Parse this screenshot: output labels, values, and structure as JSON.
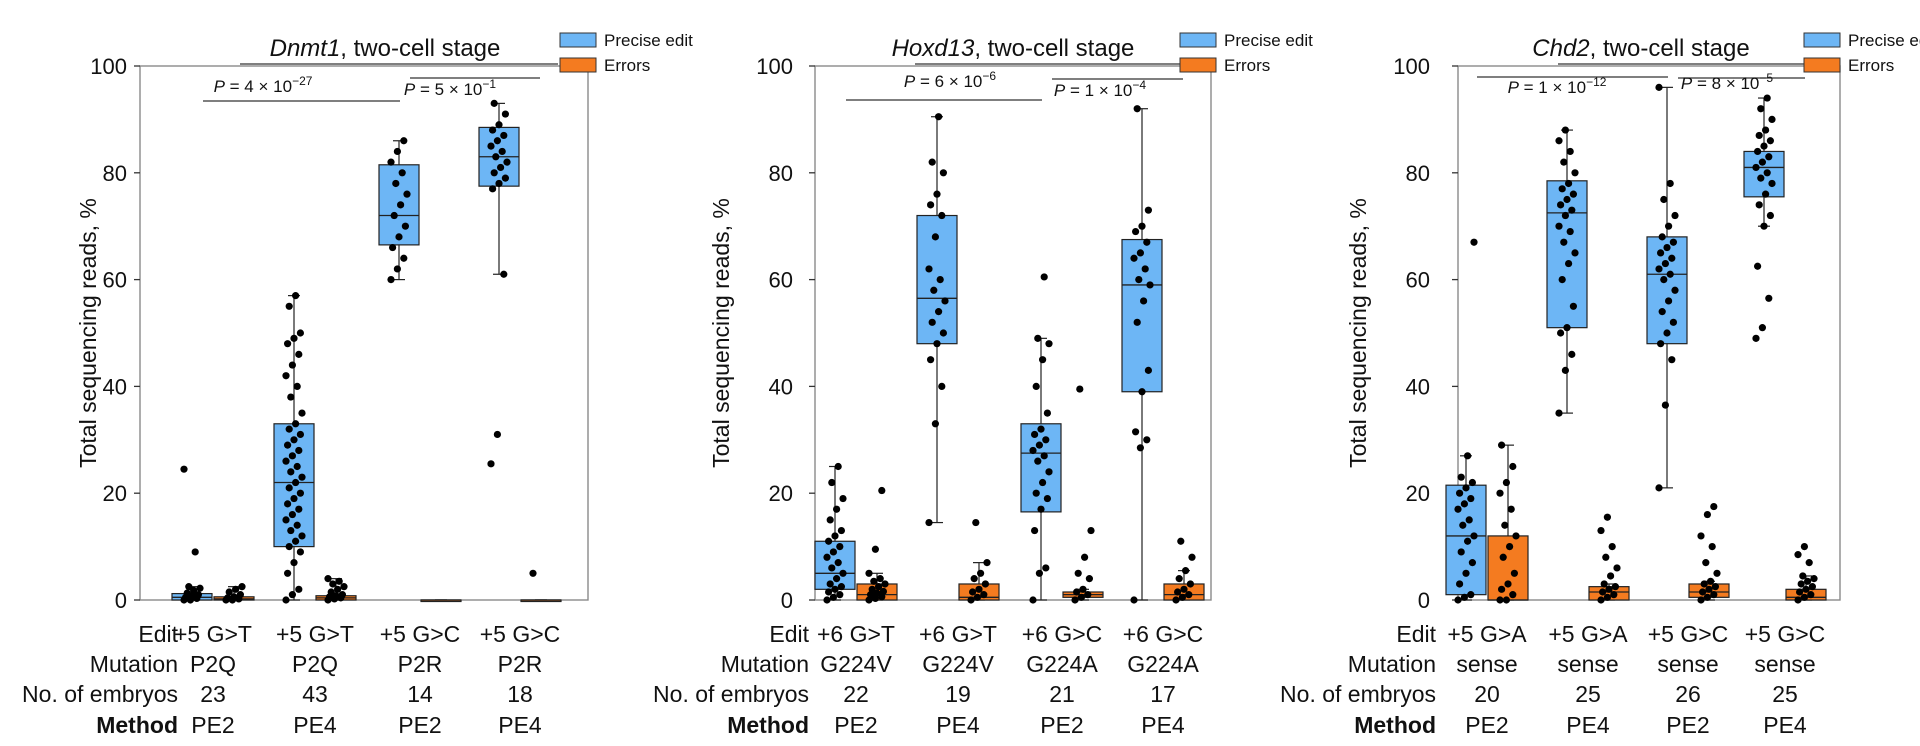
{
  "colors": {
    "precise": "#6DB6F5",
    "errors": "#F47B20",
    "frame": "#8a8a8a",
    "point": "#000000"
  },
  "table_row_labels": [
    "Edit",
    "Mutation",
    "No. of embryos",
    "Method"
  ],
  "chart_data": [
    {
      "type": "box",
      "title_italic": "Dnmt1",
      "title_rest": ", two-cell stage",
      "ylabel": "Total sequencing reads, %",
      "ylim": [
        0,
        100
      ],
      "yticks": [
        0,
        20,
        40,
        60,
        80,
        100
      ],
      "legend": [
        "Precise edit",
        "Errors"
      ],
      "groups": [
        {
          "edit": "+5 G>T",
          "mutation": "P2Q",
          "n": "23",
          "method": "PE2",
          "precise": {
            "q1": 0,
            "median": 0.5,
            "q3": 1.2,
            "min": 0,
            "max": 2.5,
            "points": [
              0,
              0,
              0.3,
              0.5,
              0.8,
              1,
              1.3,
              1.8,
              2.2,
              2.5,
              9,
              24.5
            ]
          },
          "errors": {
            "q1": 0,
            "median": 0.2,
            "q3": 0.6,
            "min": 0,
            "max": 2.5,
            "points": [
              0,
              0,
              0.2,
              0.4,
              0.6,
              1,
              1.5,
              2,
              2.5
            ]
          }
        },
        {
          "edit": "+5 G>T",
          "mutation": "P2Q",
          "n": "43",
          "method": "PE4",
          "precise": {
            "q1": 10,
            "median": 22,
            "q3": 33,
            "min": 0,
            "max": 57,
            "points": [
              0,
              1,
              2,
              5,
              7,
              9,
              10,
              11,
              12,
              13,
              14,
              15,
              16,
              17,
              18,
              19,
              20,
              21,
              22,
              23,
              24,
              25,
              26,
              27,
              28,
              29,
              30,
              31,
              32,
              33,
              35,
              38,
              40,
              42,
              44,
              46,
              48,
              49,
              50,
              55,
              57
            ]
          },
          "errors": {
            "q1": 0,
            "median": 0.4,
            "q3": 0.8,
            "min": 0,
            "max": 4,
            "points": [
              0,
              0.2,
              0.4,
              0.6,
              0.8,
              1,
              1.5,
              2,
              2.5,
              3,
              3.5,
              4
            ]
          }
        },
        {
          "edit": "+5 G>C",
          "mutation": "P2R",
          "n": "14",
          "method": "PE2",
          "precise": {
            "q1": 66.5,
            "median": 72,
            "q3": 81.5,
            "min": 60,
            "max": 86,
            "points": [
              60,
              62,
              64,
              66,
              68,
              70,
              72,
              74,
              76,
              78,
              80,
              82,
              84,
              86
            ]
          },
          "errors": {
            "q1": 0,
            "median": 0,
            "q3": 0,
            "min": 0,
            "max": 0,
            "points": []
          }
        },
        {
          "edit": "+5 G>C",
          "mutation": "P2R",
          "n": "18",
          "method": "PE4",
          "precise": {
            "q1": 77.5,
            "median": 83,
            "q3": 88.5,
            "min": 61,
            "max": 93,
            "points": [
              25.5,
              31,
              61,
              77,
              78,
              79,
              80,
              81,
              82,
              83,
              84,
              85,
              86,
              87,
              88,
              89,
              91,
              93
            ]
          },
          "errors": {
            "q1": 0,
            "median": 0,
            "q3": 0,
            "min": 0,
            "max": 0,
            "points": [
              5
            ]
          }
        }
      ],
      "pvalues": [
        {
          "mant": "4",
          "exp": "−27"
        },
        {
          "mant": "5",
          "exp": "−1"
        }
      ]
    },
    {
      "type": "box",
      "title_italic": "Hoxd13",
      "title_rest": ", two-cell stage",
      "ylabel": "Total sequencing reads, %",
      "ylim": [
        0,
        100
      ],
      "yticks": [
        0,
        20,
        40,
        60,
        80,
        100
      ],
      "legend": [
        "Precise edit",
        "Errors"
      ],
      "groups": [
        {
          "edit": "+6 G>T",
          "mutation": "G224V",
          "n": "22",
          "method": "PE2",
          "precise": {
            "q1": 2,
            "median": 5,
            "q3": 11,
            "min": 0,
            "max": 25,
            "points": [
              0,
              0.5,
              1,
              1.5,
              2,
              2.5,
              3,
              4,
              5,
              6,
              7,
              8,
              9,
              10,
              11,
              12,
              13,
              15,
              17,
              19,
              22,
              25
            ]
          },
          "errors": {
            "q1": 0,
            "median": 1,
            "q3": 3,
            "min": 0,
            "max": 5,
            "points": [
              0,
              0.3,
              0.6,
              1,
              1.3,
              1.6,
              2,
              2.5,
              3,
              3.5,
              4,
              5,
              9.5,
              20.5
            ]
          }
        },
        {
          "edit": "+6 G>T",
          "mutation": "G224V",
          "n": "19",
          "method": "PE4",
          "precise": {
            "q1": 48,
            "median": 56.5,
            "q3": 72,
            "min": 14.5,
            "max": 90.5,
            "points": [
              14.5,
              33,
              40,
              45,
              48,
              50,
              52,
              54,
              56,
              58,
              60,
              62,
              68,
              72,
              74,
              76,
              80,
              82,
              90.5
            ]
          },
          "errors": {
            "q1": 0,
            "median": 0.5,
            "q3": 3,
            "min": 0,
            "max": 7,
            "points": [
              0,
              0.5,
              1,
              1.5,
              2,
              3,
              4,
              5,
              7,
              14.5
            ]
          }
        },
        {
          "edit": "+6 G>C",
          "mutation": "G224A",
          "n": "21",
          "method": "PE2",
          "precise": {
            "q1": 16.5,
            "median": 27.5,
            "q3": 33,
            "min": 0,
            "max": 49,
            "points": [
              0,
              5,
              6,
              13,
              17,
              19,
              20,
              22,
              24,
              26,
              27,
              28,
              29,
              30,
              31,
              32,
              35,
              40,
              45,
              48,
              49,
              60.5
            ]
          },
          "errors": {
            "q1": 0.5,
            "median": 1,
            "q3": 1.5,
            "min": 0,
            "max": 2,
            "points": [
              0,
              0.5,
              1,
              1.5,
              2,
              4,
              5,
              8,
              13,
              39.5
            ]
          }
        },
        {
          "edit": "+6 G>C",
          "mutation": "G224A",
          "n": "17",
          "method": "PE4",
          "precise": {
            "q1": 39,
            "median": 59,
            "q3": 67.5,
            "min": 0,
            "max": 92,
            "points": [
              0,
              28.5,
              30,
              31.5,
              39,
              43,
              52,
              56,
              59,
              60,
              62,
              64,
              65,
              67,
              69,
              70,
              73,
              92
            ]
          },
          "errors": {
            "q1": 0,
            "median": 1,
            "q3": 3,
            "min": 0,
            "max": 5.5,
            "points": [
              0,
              0.5,
              1,
              1.5,
              2,
              3,
              4,
              5.5,
              8,
              11
            ]
          }
        }
      ],
      "pvalues": [
        {
          "mant": "6",
          "exp": "−6"
        },
        {
          "mant": "1",
          "exp": "−4"
        }
      ]
    },
    {
      "type": "box",
      "title_italic": "Chd2",
      "title_rest": ", two-cell stage",
      "ylabel": "Total sequencing reads, %",
      "ylim": [
        0,
        100
      ],
      "yticks": [
        0,
        20,
        40,
        60,
        80,
        100
      ],
      "legend": [
        "Precise edit",
        "Errors"
      ],
      "groups": [
        {
          "edit": "+5 G>A",
          "mutation": "sense",
          "n": "20",
          "method": "PE2",
          "precise": {
            "q1": 1,
            "median": 12,
            "q3": 21.5,
            "min": 0,
            "max": 27,
            "points": [
              0,
              0.5,
              1,
              3,
              5,
              7,
              9,
              11,
              12,
              14,
              15,
              17,
              18,
              19,
              20,
              21,
              22,
              23,
              27,
              67
            ]
          },
          "errors": {
            "q1": 0,
            "median": 0,
            "q3": 12,
            "min": 0,
            "max": 29,
            "points": [
              0,
              0,
              1,
              2,
              3,
              5,
              8,
              10,
              12,
              14,
              17,
              20,
              22,
              25,
              29
            ]
          }
        },
        {
          "edit": "+5 G>A",
          "mutation": "sense",
          "n": "25",
          "method": "PE4",
          "precise": {
            "q1": 51,
            "median": 72.5,
            "q3": 78.5,
            "min": 35,
            "max": 88,
            "points": [
              35,
              43,
              46,
              50,
              51,
              55,
              60,
              63,
              65,
              67,
              69,
              70,
              72,
              73,
              74,
              75,
              76,
              77,
              78,
              80,
              82,
              84,
              86,
              88
            ]
          },
          "errors": {
            "q1": 0,
            "median": 1.5,
            "q3": 2.5,
            "min": 0,
            "max": 3,
            "points": [
              0,
              0.5,
              1,
              1.5,
              2,
              2.5,
              3,
              4.5,
              6,
              8,
              10,
              13,
              15.5
            ]
          }
        },
        {
          "edit": "+5 G>C",
          "mutation": "sense",
          "n": "26",
          "method": "PE2",
          "precise": {
            "q1": 48,
            "median": 61,
            "q3": 68,
            "min": 21,
            "max": 96,
            "points": [
              21,
              36.5,
              45,
              48,
              50,
              52,
              54,
              56,
              58,
              60,
              61,
              62,
              63,
              64,
              65,
              66,
              67,
              68,
              70,
              72,
              75,
              78,
              96
            ]
          },
          "errors": {
            "q1": 0.5,
            "median": 1.5,
            "q3": 3,
            "min": 0,
            "max": 3.5,
            "points": [
              0,
              0.5,
              1,
              1.5,
              2,
              2.5,
              3,
              3.5,
              5,
              7,
              10,
              12,
              16,
              17.5
            ]
          }
        },
        {
          "edit": "+5 G>C",
          "mutation": "sense",
          "n": "25",
          "method": "PE4",
          "precise": {
            "q1": 75.5,
            "median": 81,
            "q3": 84,
            "min": 70,
            "max": 94,
            "points": [
              49,
              51,
              56.5,
              62.5,
              70,
              72,
              74,
              76,
              78,
              79,
              80,
              81,
              82,
              83,
              84,
              85,
              86,
              87,
              88,
              90,
              92,
              94
            ]
          },
          "errors": {
            "q1": 0,
            "median": 0.5,
            "q3": 2,
            "min": 0,
            "max": 4.5,
            "points": [
              0,
              0.5,
              1,
              1.5,
              2,
              2.5,
              3,
              3.5,
              4,
              4.5,
              7,
              8.5,
              10
            ]
          }
        }
      ],
      "pvalues": [
        {
          "mant": "1",
          "exp": "−12"
        },
        {
          "mant": "8",
          "exp": "−5"
        }
      ]
    }
  ]
}
